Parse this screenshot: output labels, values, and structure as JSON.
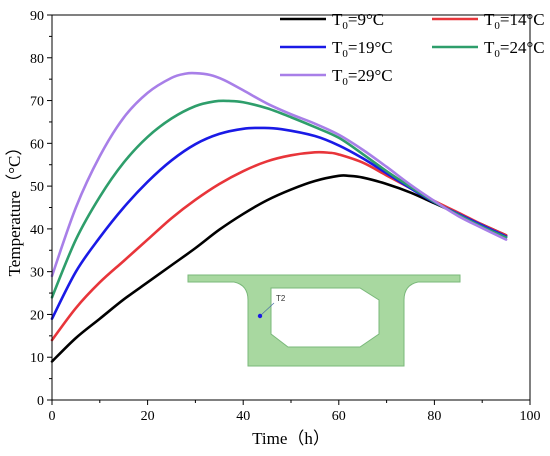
{
  "chart_data": {
    "type": "line",
    "xlabel": "Time（h）",
    "ylabel": "Temperature（°C）",
    "xlim": [
      0,
      100
    ],
    "ylim": [
      0,
      90
    ],
    "xticks": [
      "0",
      "20",
      "40",
      "60",
      "80",
      "100"
    ],
    "yticks": [
      "0",
      "10",
      "20",
      "30",
      "40",
      "50",
      "60",
      "70",
      "80",
      "90"
    ],
    "legend_position": "top-right",
    "grid": false,
    "series": [
      {
        "name": "T0=9°C",
        "name_base": "T",
        "name_sub": "0",
        "name_rest": "=9°C",
        "color": "#000000",
        "x": [
          0,
          5,
          10,
          15,
          20,
          25,
          30,
          35,
          40,
          45,
          50,
          55,
          60,
          62,
          65,
          70,
          75,
          80,
          85,
          90,
          95
        ],
        "y": [
          9,
          14.5,
          19,
          23.5,
          27.5,
          31.5,
          35.5,
          39.8,
          43.5,
          46.7,
          49.2,
          51.2,
          52.4,
          52.4,
          52,
          50.5,
          48.5,
          46,
          43.5,
          41,
          38.5
        ]
      },
      {
        "name": "T0=14°C",
        "name_base": "T",
        "name_sub": "0",
        "name_rest": "=14°C",
        "color": "#e8353a",
        "x": [
          0,
          5,
          10,
          15,
          20,
          25,
          30,
          35,
          40,
          45,
          50,
          55,
          58,
          60,
          65,
          70,
          75,
          80,
          85,
          90,
          95
        ],
        "y": [
          14,
          21.5,
          27.5,
          32.5,
          37.5,
          42.5,
          46.8,
          50.5,
          53.5,
          55.8,
          57.2,
          57.9,
          57.8,
          57.4,
          55.5,
          52.5,
          49.5,
          46.5,
          43.8,
          41,
          38.5
        ]
      },
      {
        "name": "T0=19°C",
        "name_base": "T",
        "name_sub": "0",
        "name_rest": "=19°C",
        "color": "#1a1ae6",
        "x": [
          0,
          5,
          10,
          15,
          20,
          25,
          30,
          35,
          40,
          44,
          48,
          55,
          60,
          65,
          70,
          75,
          80,
          85,
          90,
          95
        ],
        "y": [
          19,
          30,
          38,
          45,
          51,
          56,
          59.8,
          62.2,
          63.4,
          63.6,
          63.3,
          61.7,
          59.5,
          56.5,
          53,
          49.5,
          46.2,
          43.5,
          40.8,
          38.2
        ]
      },
      {
        "name": "T0=24°C",
        "name_base": "T",
        "name_sub": "0",
        "name_rest": "=24°C",
        "color": "#2e9e6b",
        "x": [
          0,
          5,
          10,
          15,
          20,
          25,
          30,
          34,
          37,
          40,
          45,
          50,
          55,
          60,
          65,
          70,
          75,
          80,
          85,
          90,
          95
        ],
        "y": [
          24,
          37.5,
          47.5,
          55.5,
          61.5,
          65.8,
          68.7,
          69.8,
          69.9,
          69.6,
          68.2,
          66.1,
          63.8,
          61.3,
          57.5,
          53.5,
          49.8,
          46.3,
          43.3,
          40.5,
          38
        ]
      },
      {
        "name": "T0=29°C",
        "name_base": "T",
        "name_sub": "0",
        "name_rest": "=29°C",
        "color": "#a87fe8",
        "x": [
          0,
          5,
          10,
          15,
          20,
          25,
          28,
          30,
          33,
          36,
          40,
          45,
          50,
          55,
          60,
          65,
          70,
          75,
          80,
          85,
          90,
          95
        ],
        "y": [
          29,
          45,
          57,
          66,
          71.8,
          75.3,
          76.3,
          76.4,
          76,
          74.8,
          72.4,
          69.3,
          66.8,
          64.6,
          62,
          58.5,
          54.5,
          50.3,
          46.5,
          43,
          40.2,
          37.5
        ]
      }
    ],
    "inset": {
      "label": "T2",
      "section_fill": "#a8d8a0",
      "section_stroke": "#7ab87a",
      "point_color": "#1a1ae6"
    }
  }
}
